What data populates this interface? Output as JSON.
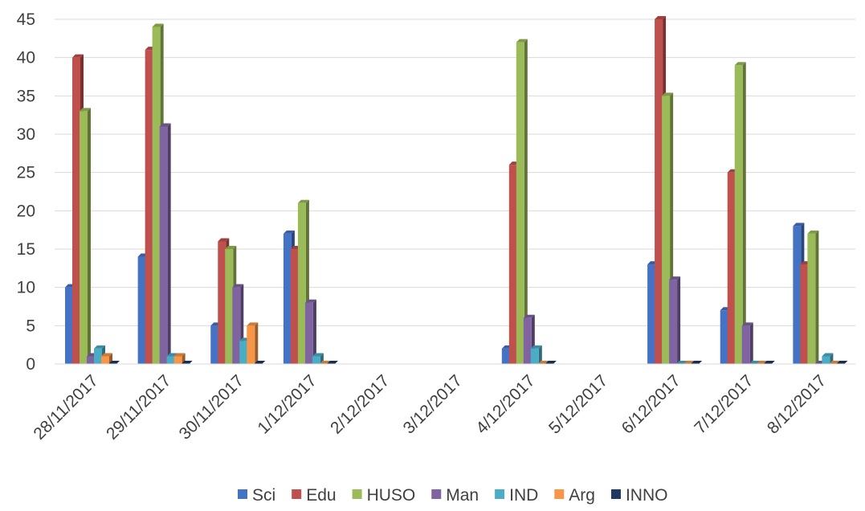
{
  "chart_data": {
    "type": "bar",
    "title": "",
    "xlabel": "",
    "ylabel": "",
    "ylim": [
      0,
      45
    ],
    "yticks": [
      0,
      5,
      10,
      15,
      20,
      25,
      30,
      35,
      40,
      45
    ],
    "grid": true,
    "legend_position": "bottom",
    "categories": [
      "28/11/2017",
      "29/11/2017",
      "30/11/2017",
      "1/12/2017",
      "2/12/2017",
      "3/12/2017",
      "4/12/2017",
      "5/12/2017",
      "6/12/2017",
      "7/12/2017",
      "8/12/2017"
    ],
    "series": [
      {
        "name": "Sci",
        "color": "#4472C4",
        "values": [
          10,
          14,
          5,
          17,
          null,
          null,
          2,
          null,
          13,
          7,
          18
        ]
      },
      {
        "name": "Edu",
        "color": "#C0504D",
        "values": [
          40,
          41,
          16,
          15,
          null,
          null,
          26,
          null,
          45,
          25,
          13
        ]
      },
      {
        "name": "HUSO",
        "color": "#9BBB59",
        "values": [
          33,
          44,
          15,
          21,
          null,
          null,
          42,
          null,
          35,
          39,
          17
        ]
      },
      {
        "name": "Man",
        "color": "#8064A2",
        "values": [
          1,
          31,
          10,
          8,
          null,
          null,
          6,
          null,
          11,
          5,
          0
        ]
      },
      {
        "name": "IND",
        "color": "#4BACC6",
        "values": [
          2,
          1,
          3,
          1,
          null,
          null,
          2,
          null,
          0,
          0,
          1
        ]
      },
      {
        "name": "Arg",
        "color": "#F79646",
        "values": [
          1,
          1,
          5,
          0,
          null,
          null,
          0,
          null,
          0,
          0,
          0
        ]
      },
      {
        "name": "INNO",
        "color": "#1F3864",
        "values": [
          0,
          0,
          0,
          0,
          null,
          null,
          0,
          null,
          0,
          0,
          0
        ]
      }
    ]
  }
}
